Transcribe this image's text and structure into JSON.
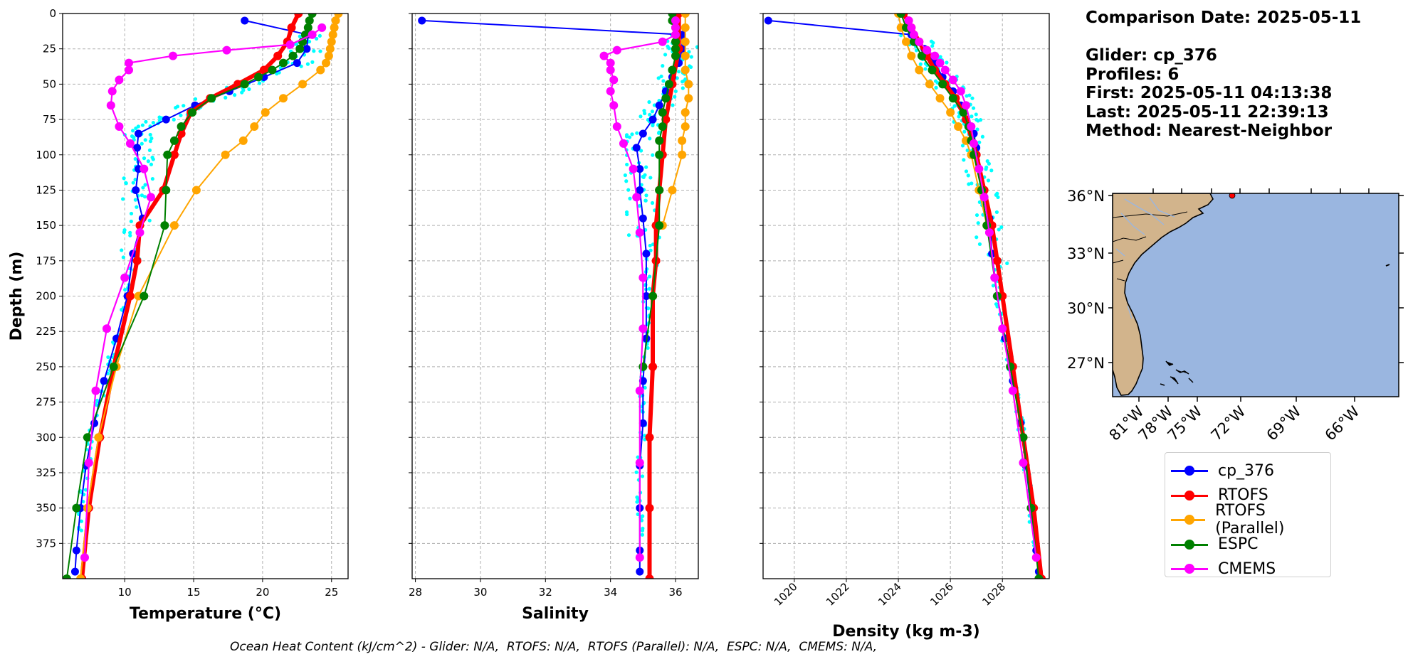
{
  "info": {
    "comparison_date": "Comparison Date: 2025-05-11",
    "glider": "Glider: cp_376",
    "profiles": "Profiles: 6",
    "first": "First: 2025-05-11 04:13:38",
    "last": "Last: 2025-05-11 22:39:13",
    "method": "Method: Nearest-Neighbor"
  },
  "footer": "Ocean Heat Content (kJ/cm^2) - Glider: N/A,  RTOFS: N/A,  RTOFS (Parallel): N/A,  ESPC: N/A,  CMEMS: N/A,",
  "colors": {
    "cp_376": "#0000ff",
    "RTOFS": "#ff0000",
    "RTOFS (Parallel)": "#ffa500",
    "ESPC": "#008000",
    "CMEMS": "#ff00ff",
    "raw_scatter": "#00ffff",
    "land": "#d2b48c",
    "ocean": "#9ab6e0"
  },
  "legend": [
    "cp_376",
    "RTOFS",
    "RTOFS (Parallel)",
    "ESPC",
    "CMEMS"
  ],
  "chart_data": [
    {
      "type": "line",
      "xlabel": "Temperature (°C)",
      "ylabel": "Depth (m)",
      "xlim": [
        5.5,
        26.2
      ],
      "ylim": [
        400,
        0
      ],
      "xticks": [
        10,
        15,
        20,
        25
      ],
      "yticks": [
        0,
        25,
        50,
        75,
        100,
        125,
        150,
        175,
        200,
        225,
        250,
        275,
        300,
        325,
        350,
        375
      ],
      "grid": true,
      "series": [
        {
          "name": "cp_376",
          "y": [
            5,
            15,
            25,
            35,
            45,
            55,
            65,
            75,
            85,
            95,
            110,
            125,
            145,
            170,
            200,
            230,
            260,
            290,
            320,
            350,
            380,
            395
          ],
          "x": [
            18.7,
            23.3,
            23.2,
            22.5,
            20.1,
            17.6,
            15.1,
            13.0,
            11.0,
            10.9,
            11.0,
            10.8,
            11.3,
            10.6,
            10.2,
            9.4,
            8.5,
            7.8,
            7.2,
            6.8,
            6.5,
            6.4
          ]
        },
        {
          "name": "RTOFS",
          "y": [
            0,
            10,
            20,
            30,
            40,
            50,
            60,
            70,
            85,
            100,
            125,
            150,
            175,
            200,
            250,
            300,
            350,
            400
          ],
          "x": [
            22.6,
            22.1,
            21.8,
            21.1,
            20.1,
            18.2,
            16.2,
            14.8,
            14.1,
            13.6,
            12.8,
            11.1,
            10.9,
            10.4,
            9.2,
            8.2,
            7.4,
            6.9
          ]
        },
        {
          "name": "RTOFS (Parallel)",
          "y": [
            0,
            5,
            10,
            15,
            20,
            25,
            30,
            35,
            40,
            50,
            60,
            70,
            80,
            90,
            100,
            125,
            150,
            200,
            250,
            300,
            350,
            400
          ],
          "x": [
            25.5,
            25.3,
            25.2,
            25.1,
            25.0,
            24.9,
            24.8,
            24.6,
            24.2,
            22.9,
            21.5,
            20.2,
            19.4,
            18.6,
            17.3,
            15.2,
            13.6,
            11.0,
            9.4,
            8.1,
            7.3,
            6.8
          ]
        },
        {
          "name": "ESPC",
          "y": [
            0,
            5,
            10,
            15,
            20,
            25,
            30,
            35,
            40,
            45,
            50,
            60,
            70,
            80,
            90,
            100,
            125,
            150,
            200,
            250,
            300,
            350,
            400
          ],
          "x": [
            23.6,
            23.4,
            23.3,
            23.1,
            22.9,
            22.7,
            22.2,
            21.5,
            20.7,
            19.7,
            18.7,
            16.3,
            14.9,
            14.1,
            13.6,
            13.1,
            13.0,
            12.9,
            11.4,
            9.2,
            7.3,
            6.5,
            5.8
          ]
        },
        {
          "name": "CMEMS",
          "y": [
            10,
            15,
            22,
            26,
            30,
            35,
            40,
            47,
            55,
            65,
            80,
            92,
            110,
            130,
            155,
            187,
            223,
            267,
            318,
            385
          ],
          "x": [
            24.3,
            23.6,
            22.0,
            17.4,
            13.5,
            10.3,
            10.3,
            9.6,
            9.1,
            9.0,
            9.6,
            10.4,
            11.4,
            11.9,
            11.1,
            10.0,
            8.7,
            7.9,
            7.4,
            7.1
          ]
        }
      ]
    },
    {
      "type": "line",
      "xlabel": "Salinity",
      "ylabel": "",
      "xlim": [
        27.9,
        36.7
      ],
      "ylim": [
        400,
        0
      ],
      "xticks": [
        28,
        30,
        32,
        34,
        36
      ],
      "grid": true,
      "series": [
        {
          "name": "cp_376",
          "y": [
            5,
            15,
            25,
            35,
            45,
            55,
            65,
            75,
            85,
            95,
            110,
            125,
            145,
            170,
            200,
            230,
            260,
            290,
            320,
            350,
            380,
            395
          ],
          "x": [
            28.2,
            36.2,
            36.2,
            36.1,
            35.9,
            35.7,
            35.5,
            35.3,
            35.0,
            34.8,
            34.9,
            34.9,
            35.0,
            35.1,
            35.1,
            35.1,
            35.0,
            35.0,
            34.9,
            34.9,
            34.9,
            34.9
          ]
        },
        {
          "name": "RTOFS",
          "y": [
            0,
            25,
            50,
            75,
            100,
            125,
            150,
            175,
            200,
            250,
            300,
            350,
            400
          ],
          "x": [
            36.1,
            36.1,
            35.9,
            35.7,
            35.6,
            35.5,
            35.4,
            35.4,
            35.3,
            35.3,
            35.2,
            35.2,
            35.2
          ]
        },
        {
          "name": "RTOFS (Parallel)",
          "y": [
            0,
            10,
            20,
            30,
            40,
            50,
            60,
            70,
            80,
            90,
            100,
            125,
            150
          ],
          "x": [
            36.3,
            36.3,
            36.3,
            36.3,
            36.3,
            36.4,
            36.4,
            36.3,
            36.3,
            36.2,
            36.2,
            35.9,
            35.6
          ]
        },
        {
          "name": "ESPC",
          "y": [
            0,
            5,
            10,
            15,
            20,
            25,
            30,
            40,
            50,
            60,
            70,
            80,
            90,
            100,
            125,
            150,
            200,
            250
          ],
          "x": [
            35.9,
            35.9,
            36.0,
            36.0,
            36.0,
            36.0,
            36.0,
            35.9,
            35.8,
            35.7,
            35.6,
            35.6,
            35.5,
            35.5,
            35.5,
            35.5,
            35.3,
            35.0
          ]
        },
        {
          "name": "CMEMS",
          "y": [
            5,
            10,
            15,
            20,
            26,
            30,
            35,
            40,
            47,
            55,
            65,
            80,
            92,
            110,
            130,
            155,
            187,
            223,
            267,
            318,
            385
          ],
          "x": [
            36.0,
            36.0,
            36.0,
            35.6,
            34.2,
            33.8,
            34.0,
            34.0,
            34.1,
            34.0,
            34.1,
            34.2,
            34.4,
            34.7,
            34.8,
            34.9,
            35.0,
            35.0,
            34.9,
            34.9,
            34.9
          ]
        }
      ]
    },
    {
      "type": "line",
      "xlabel": "Density (kg m-3)",
      "ylabel": "",
      "xlim": [
        1018.8,
        1029.8
      ],
      "ylim": [
        400,
        0
      ],
      "xticks": [
        1020,
        1022,
        1024,
        1026,
        1028
      ],
      "grid": true,
      "series": [
        {
          "name": "cp_376",
          "y": [
            5,
            15,
            25,
            35,
            45,
            55,
            65,
            75,
            85,
            95,
            110,
            125,
            145,
            170,
            200,
            230,
            260,
            290,
            320,
            350,
            380,
            395
          ],
          "x": [
            1019.0,
            1024.5,
            1025.0,
            1025.4,
            1025.7,
            1026.1,
            1026.4,
            1026.6,
            1026.9,
            1027.0,
            1027.1,
            1027.3,
            1027.5,
            1027.6,
            1027.8,
            1028.1,
            1028.4,
            1028.7,
            1028.9,
            1029.1,
            1029.3,
            1029.4
          ]
        },
        {
          "name": "RTOFS",
          "y": [
            0,
            10,
            20,
            30,
            40,
            50,
            60,
            75,
            100,
            125,
            150,
            175,
            200,
            250,
            300,
            350,
            400
          ],
          "x": [
            1024.2,
            1024.5,
            1024.8,
            1025.1,
            1025.4,
            1025.8,
            1026.2,
            1026.6,
            1027.0,
            1027.3,
            1027.6,
            1027.8,
            1028.0,
            1028.4,
            1028.8,
            1029.2,
            1029.5
          ]
        },
        {
          "name": "RTOFS (Parallel)",
          "y": [
            0,
            10,
            20,
            30,
            40,
            50,
            60,
            70,
            80,
            90,
            100,
            125,
            150
          ],
          "x": [
            1024.0,
            1024.1,
            1024.3,
            1024.5,
            1024.8,
            1025.2,
            1025.6,
            1026.0,
            1026.3,
            1026.6,
            1026.8,
            1027.1,
            1027.4
          ]
        },
        {
          "name": "ESPC",
          "y": [
            0,
            10,
            20,
            30,
            40,
            50,
            60,
            70,
            80,
            90,
            100,
            125,
            150,
            200,
            250,
            300,
            350,
            400
          ],
          "x": [
            1024.1,
            1024.3,
            1024.6,
            1024.9,
            1025.3,
            1025.7,
            1026.1,
            1026.5,
            1026.7,
            1026.8,
            1026.9,
            1027.2,
            1027.4,
            1027.8,
            1028.3,
            1028.8,
            1029.1,
            1029.4
          ]
        },
        {
          "name": "CMEMS",
          "y": [
            5,
            10,
            15,
            20,
            26,
            30,
            35,
            40,
            47,
            55,
            65,
            80,
            92,
            110,
            130,
            155,
            187,
            223,
            267,
            318,
            385
          ],
          "x": [
            1024.4,
            1024.5,
            1024.6,
            1024.8,
            1025.1,
            1025.4,
            1025.6,
            1025.8,
            1026.1,
            1026.4,
            1026.6,
            1026.8,
            1026.9,
            1027.1,
            1027.3,
            1027.5,
            1027.7,
            1028.0,
            1028.4,
            1028.8,
            1029.3
          ]
        }
      ]
    }
  ],
  "map": {
    "lat_ticks": [
      "36°N",
      "33°N",
      "30°N",
      "27°N"
    ],
    "lon_ticks": [
      "81°W",
      "78°W",
      "75°W",
      "72°W",
      "69°W",
      "66°W"
    ]
  }
}
